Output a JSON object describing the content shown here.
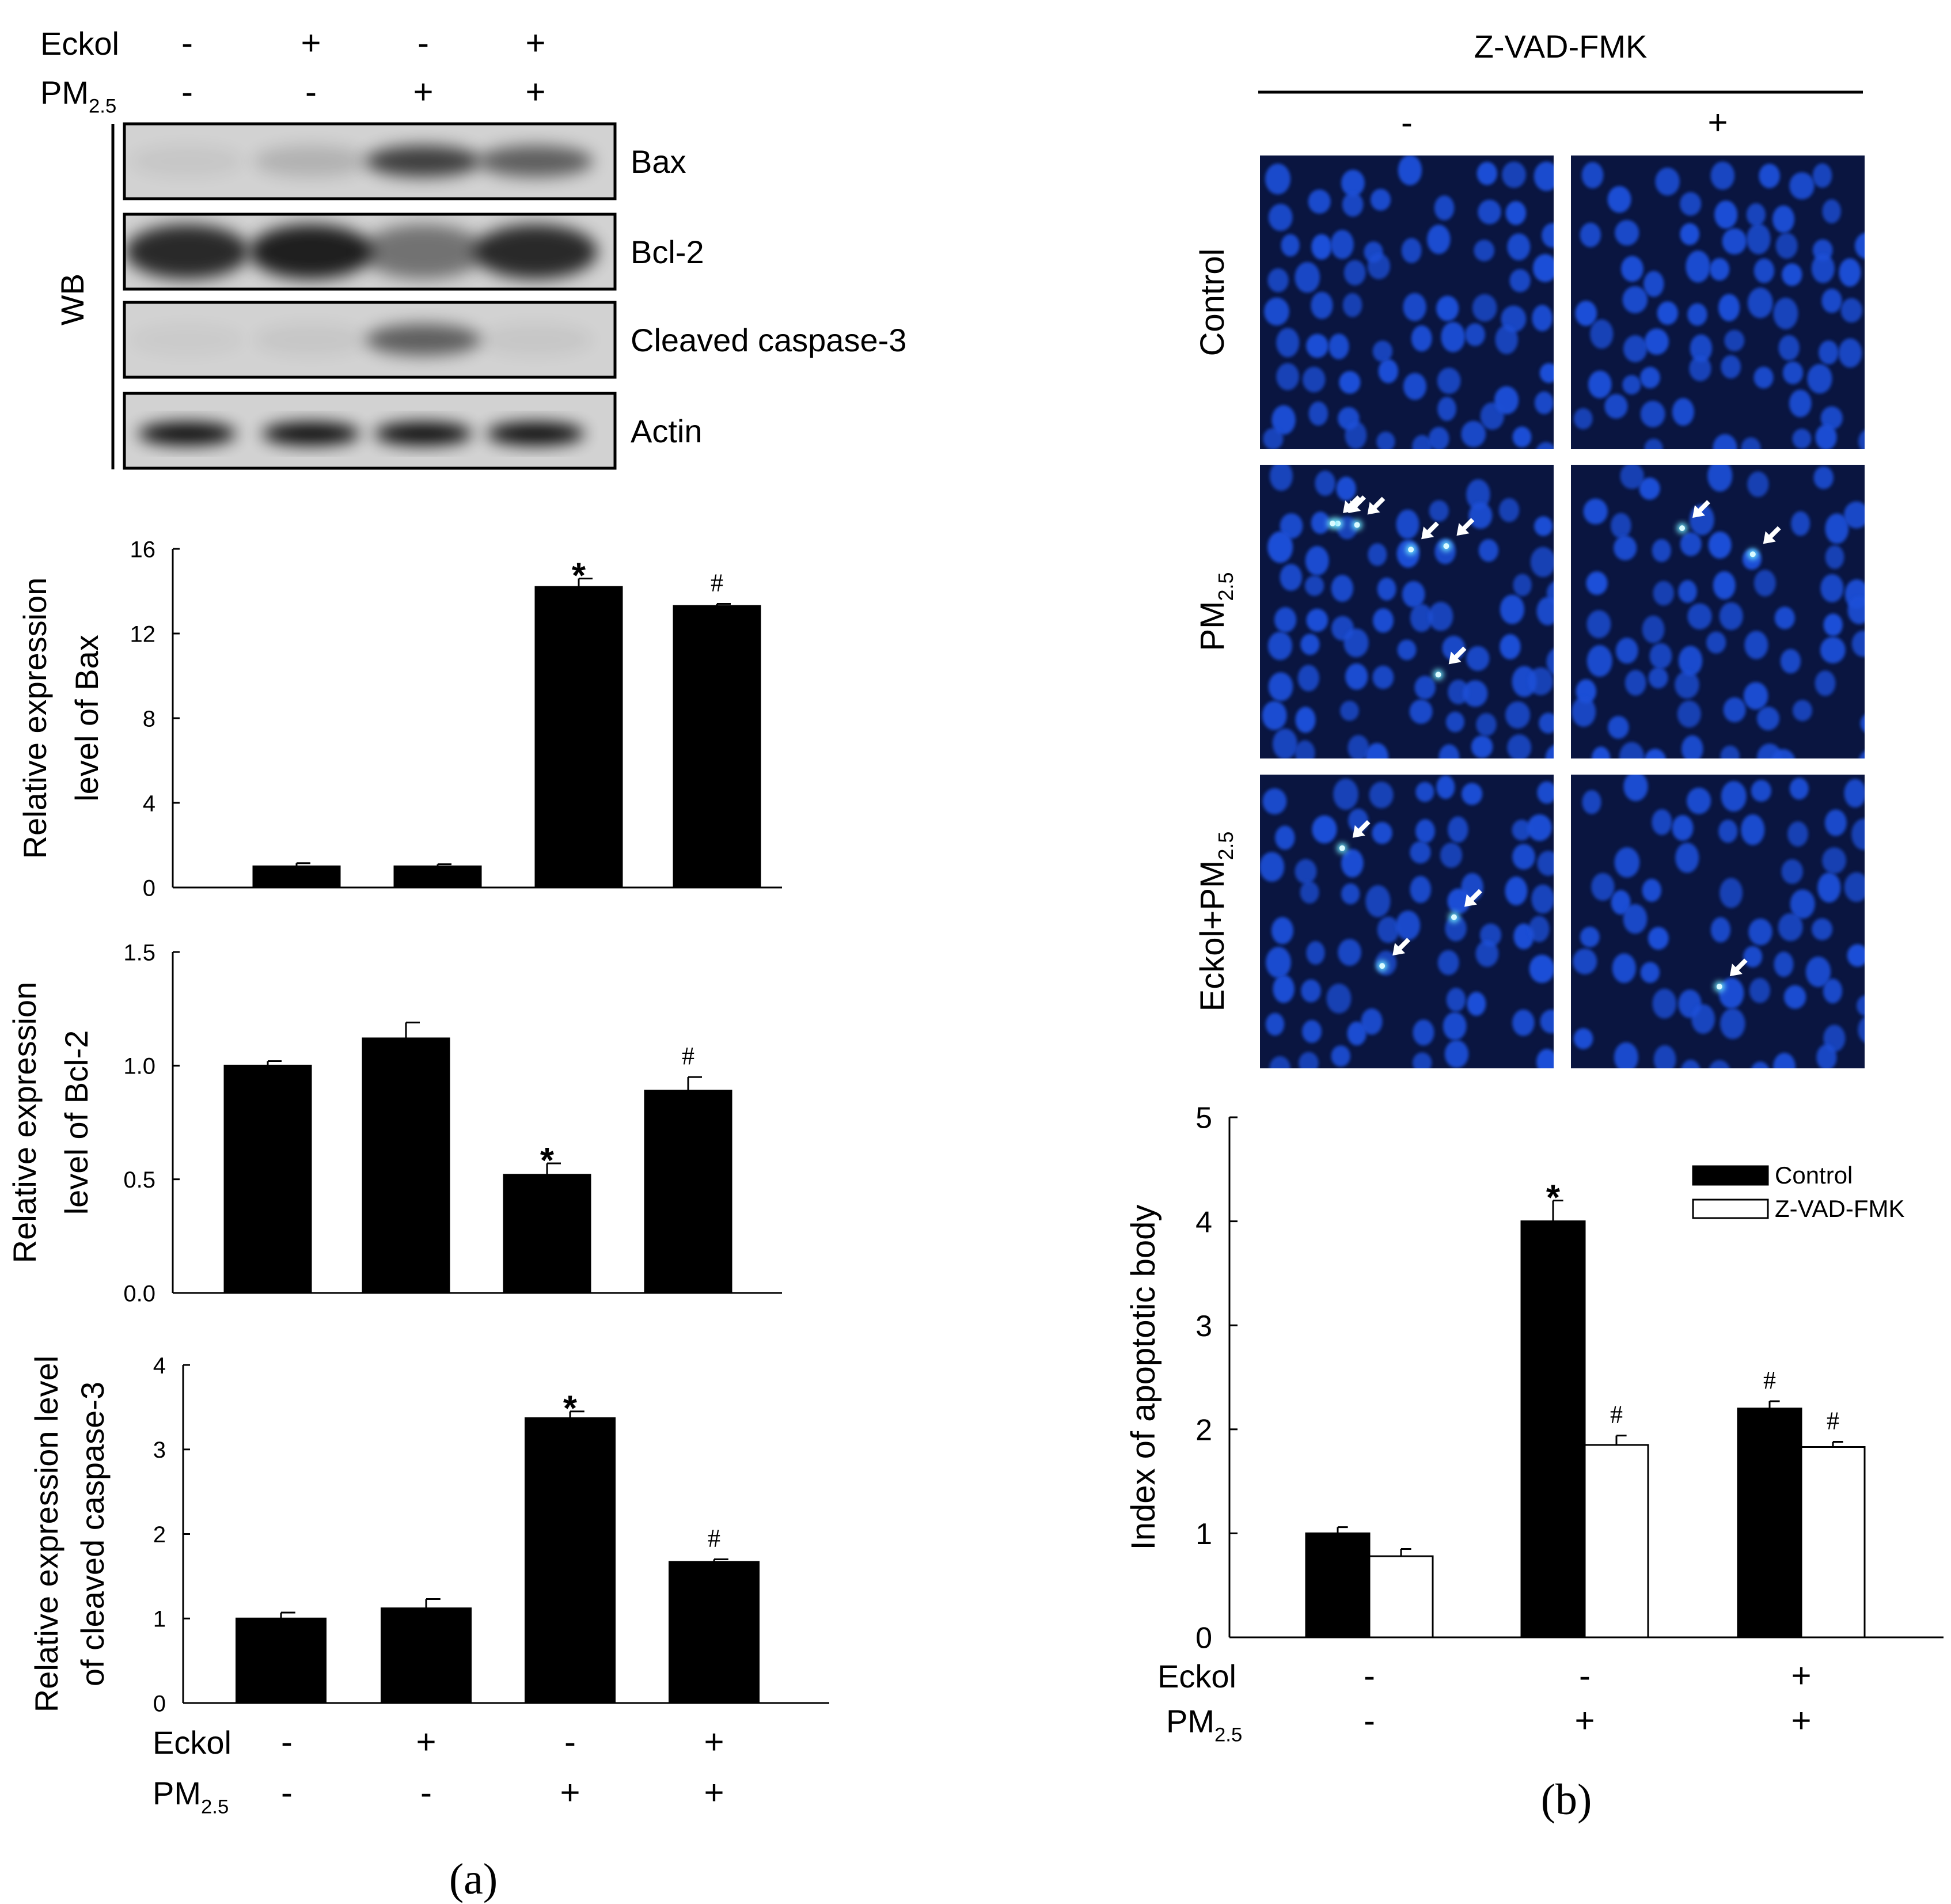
{
  "panel_labels": {
    "a": "(a)",
    "b": "(b)"
  },
  "treatment_labels": {
    "eckol": "Eckol",
    "pm_main": "PM",
    "pm_sub": "2.5"
  },
  "western_blot": {
    "side_label": "WB",
    "eckol": [
      "-",
      "+",
      "-",
      "+"
    ],
    "pm": [
      "-",
      "-",
      "+",
      "+"
    ],
    "rows": [
      {
        "label": "Bax",
        "intensity": [
          0.05,
          0.15,
          0.7,
          0.55
        ]
      },
      {
        "label": "Bcl-2",
        "intensity": [
          0.8,
          0.85,
          0.45,
          0.8
        ]
      },
      {
        "label": "Cleaved caspase-3",
        "intensity": [
          0.03,
          0.05,
          0.55,
          0.05
        ]
      },
      {
        "label": "Actin",
        "intensity": [
          0.95,
          0.95,
          0.95,
          0.95
        ]
      }
    ],
    "background": "#d2d2d2"
  },
  "microscopy": {
    "title": "Z-VAD-FMK",
    "col_labels": [
      "-",
      "+"
    ],
    "row_labels": [
      {
        "main": "Control",
        "sub": ""
      },
      {
        "main": "PM",
        "sub": "2.5"
      },
      {
        "main": "Eckol+PM",
        "sub": "2.5"
      }
    ],
    "arrow_counts": [
      [
        0,
        0
      ],
      [
        6,
        2
      ],
      [
        3,
        1
      ]
    ],
    "background_color": "#0a1540",
    "nucleus_color": "#1c4fd8",
    "apoptotic_color": "#6fe8ff"
  },
  "chart_data": [
    {
      "type": "bar",
      "ylabel": [
        "Relative expression",
        "level of Bax"
      ],
      "ylim": [
        0,
        16
      ],
      "yticks": [
        "0",
        "4",
        "8",
        "12",
        "16"
      ],
      "values": [
        1.0,
        1.0,
        14.2,
        13.3
      ],
      "errors": [
        0.15,
        0.1,
        0.4,
        0.1
      ],
      "marks": [
        "",
        "",
        "*",
        "#"
      ]
    },
    {
      "type": "bar",
      "ylabel": [
        "Relative expression",
        "level of Bcl-2"
      ],
      "ylim": [
        0,
        1.5
      ],
      "yticks": [
        "0.0",
        "0.5",
        "1.0",
        "1.5"
      ],
      "values": [
        1.0,
        1.12,
        0.52,
        0.89
      ],
      "errors": [
        0.02,
        0.07,
        0.05,
        0.06
      ],
      "marks": [
        "",
        "",
        "*",
        "#"
      ]
    },
    {
      "type": "bar",
      "ylabel": [
        "Relative expression level",
        "of cleaved caspase-3"
      ],
      "ylim": [
        0,
        4
      ],
      "yticks": [
        "0",
        "1",
        "2",
        "3",
        "4"
      ],
      "values": [
        1.0,
        1.12,
        3.37,
        1.67
      ],
      "errors": [
        0.07,
        0.11,
        0.08,
        0.03
      ],
      "marks": [
        "",
        "",
        "*",
        "#"
      ],
      "x_eckol": [
        "-",
        "+",
        "-",
        "+"
      ],
      "x_pm": [
        "-",
        "-",
        "+",
        "+"
      ]
    },
    {
      "type": "bar",
      "ylabel": [
        "Index of apoptotic body"
      ],
      "ylim": [
        0,
        5
      ],
      "yticks": [
        "0",
        "1",
        "2",
        "3",
        "4",
        "5"
      ],
      "series": [
        {
          "name": "Control",
          "values": [
            1.0,
            4.0,
            2.2
          ],
          "errors": [
            0.06,
            0.2,
            0.07
          ],
          "marks": [
            "",
            "*",
            "#"
          ],
          "fill": "#000000"
        },
        {
          "name": "Z-VAD-FMK",
          "values": [
            0.78,
            1.85,
            1.83
          ],
          "errors": [
            0.07,
            0.09,
            0.05
          ],
          "marks": [
            "",
            "#",
            "#"
          ],
          "fill": "#ffffff"
        }
      ],
      "x_eckol": [
        "-",
        "-",
        "+"
      ],
      "x_pm": [
        "-",
        "+",
        "+"
      ],
      "legend_position": "top-right"
    }
  ]
}
